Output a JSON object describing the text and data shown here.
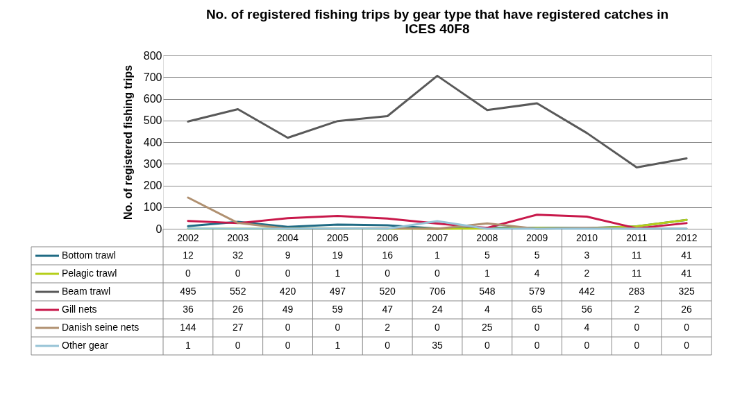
{
  "chart_data": {
    "type": "line",
    "title": "No. of registered fishing trips by gear type that have registered catches in ICES 40F8",
    "ylabel": "No. of registered fishing trips",
    "categories": [
      "2002",
      "2003",
      "2004",
      "2005",
      "2006",
      "2007",
      "2008",
      "2009",
      "2010",
      "2011",
      "2012"
    ],
    "series": [
      {
        "name": "Bottom trawl",
        "color": "#1f6b84",
        "values": [
          12,
          32,
          9,
          19,
          16,
          1,
          5,
          5,
          3,
          11,
          41
        ]
      },
      {
        "name": "Pelagic trawl",
        "color": "#b5cf1a",
        "values": [
          0,
          0,
          0,
          1,
          0,
          0,
          1,
          4,
          2,
          11,
          41
        ]
      },
      {
        "name": "Beam trawl",
        "color": "#595959",
        "values": [
          495,
          552,
          420,
          497,
          520,
          706,
          548,
          579,
          442,
          283,
          325
        ]
      },
      {
        "name": "Gill nets",
        "color": "#c8184a",
        "values": [
          36,
          26,
          49,
          59,
          47,
          24,
          4,
          65,
          56,
          2,
          26
        ]
      },
      {
        "name": "Danish seine nets",
        "color": "#b09070",
        "values": [
          144,
          27,
          0,
          0,
          2,
          0,
          25,
          0,
          4,
          0,
          0
        ]
      },
      {
        "name": "Other gear",
        "color": "#96c3d6",
        "values": [
          1,
          0,
          0,
          1,
          0,
          35,
          0,
          0,
          0,
          0,
          0
        ]
      }
    ],
    "ylim": [
      0,
      800
    ],
    "yticks": [
      0,
      100,
      200,
      300,
      400,
      500,
      600,
      700,
      800
    ],
    "grid": "y",
    "legend": "bottom left",
    "data_labels": true
  }
}
